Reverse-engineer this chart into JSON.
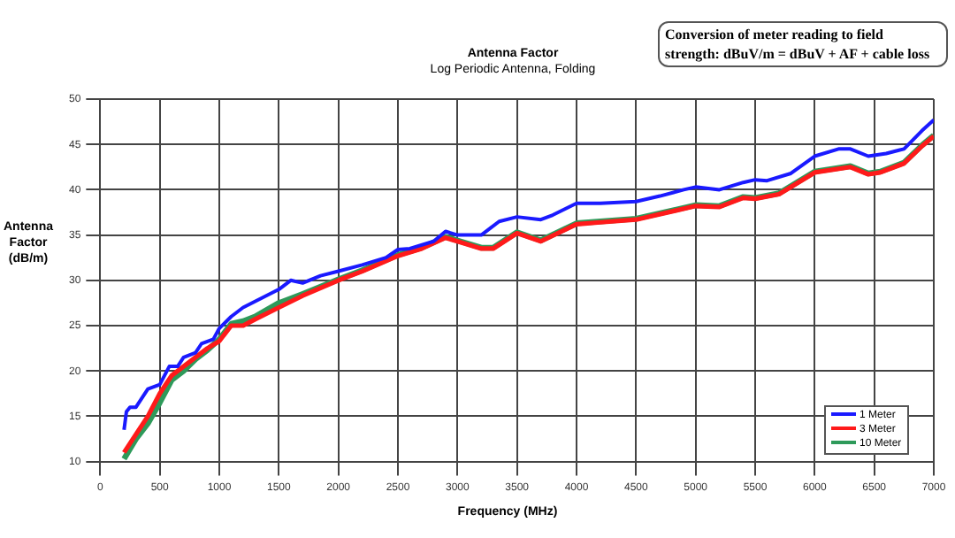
{
  "chart_data": {
    "type": "line",
    "title": "Antenna Factor",
    "subtitle": "Log Periodic Antenna, Folding",
    "xlabel": "Frequency (MHz)",
    "ylabel": "Antenna Factor (dB/m)",
    "annotations": [
      "Conversion of meter reading to field strength: dBuV/m = dBuV + AF + cable loss"
    ],
    "xlim": [
      0,
      7000
    ],
    "xticks": [
      0,
      500,
      1000,
      1500,
      2000,
      2500,
      3000,
      3500,
      4000,
      4500,
      5000,
      5500,
      6000,
      6500,
      7000
    ],
    "ylim": [
      10,
      50
    ],
    "yticks": [
      10,
      15,
      20,
      25,
      30,
      35,
      40,
      45,
      50
    ],
    "grid": true,
    "legend": "bottom right",
    "marker": "none",
    "line_style": "solid",
    "series": [
      {
        "name": "1 Meter",
        "color": "#1a1aff",
        "x": [
          200,
          220,
          250,
          300,
          350,
          400,
          500,
          580,
          650,
          700,
          800,
          850,
          950,
          1000,
          1100,
          1200,
          1350,
          1500,
          1600,
          1700,
          1850,
          2000,
          2200,
          2400,
          2500,
          2600,
          2800,
          2900,
          3000,
          3200,
          3350,
          3500,
          3700,
          3800,
          4000,
          4200,
          4500,
          4700,
          4900,
          5000,
          5200,
          5400,
          5500,
          5600,
          5800,
          6000,
          6200,
          6300,
          6450,
          6600,
          6750,
          6900,
          7000
        ],
        "values": [
          13.5,
          15.5,
          16,
          16,
          17,
          18,
          18.5,
          20.5,
          20.5,
          21.5,
          22,
          23,
          23.5,
          24.7,
          26,
          27,
          28,
          29,
          30,
          29.7,
          30.5,
          31,
          31.7,
          32.5,
          33.4,
          33.5,
          34.3,
          35.4,
          35,
          35,
          36.5,
          37,
          36.7,
          37.2,
          38.5,
          38.5,
          38.7,
          39.3,
          40,
          40.3,
          40,
          40.8,
          41.1,
          41,
          41.8,
          43.7,
          44.5,
          44.5,
          43.7,
          44,
          44.5,
          46.5,
          47.7
        ]
      },
      {
        "name": "3 Meter",
        "color": "#ff1a1a",
        "x": [
          200,
          300,
          400,
          500,
          600,
          700,
          800,
          900,
          1000,
          1100,
          1200,
          1300,
          1500,
          1700,
          2000,
          2200,
          2500,
          2700,
          2900,
          3000,
          3200,
          3300,
          3500,
          3700,
          4000,
          4200,
          4500,
          5000,
          5200,
          5400,
          5500,
          5700,
          6000,
          6300,
          6450,
          6550,
          6750,
          6900,
          7000
        ],
        "values": [
          11,
          13,
          15,
          17.5,
          19.5,
          20.5,
          21.5,
          22.5,
          23.3,
          25,
          25,
          25.7,
          27,
          28.3,
          30,
          31,
          32.7,
          33.5,
          34.7,
          34.3,
          33.5,
          33.5,
          35.2,
          34.3,
          36.2,
          36.4,
          36.7,
          38.2,
          38.1,
          39.1,
          39,
          39.5,
          41.9,
          42.5,
          41.7,
          41.9,
          42.9,
          44.8,
          45.9
        ]
      },
      {
        "name": "10 Meter",
        "color": "#2e9a5a",
        "x": [
          200,
          300,
          400,
          500,
          600,
          700,
          800,
          900,
          1000,
          1100,
          1200,
          1300,
          1500,
          1700,
          2000,
          2200,
          2500,
          2700,
          2900,
          3000,
          3200,
          3300,
          3500,
          3700,
          4000,
          4200,
          4500,
          5000,
          5200,
          5400,
          5500,
          5700,
          6000,
          6300,
          6450,
          6550,
          6750,
          6900,
          7000
        ],
        "values": [
          10.3,
          12.5,
          14.2,
          16.5,
          19,
          20,
          21.3,
          22.3,
          23.5,
          25.2,
          25.5,
          26,
          27.5,
          28.5,
          30.1,
          31.1,
          32.8,
          33.6,
          34.8,
          34.4,
          33.6,
          33.6,
          35.3,
          34.4,
          36.3,
          36.5,
          36.8,
          38.3,
          38.2,
          39.2,
          39.1,
          39.6,
          42,
          42.6,
          41.8,
          42,
          43,
          44.9,
          46
        ]
      }
    ]
  }
}
